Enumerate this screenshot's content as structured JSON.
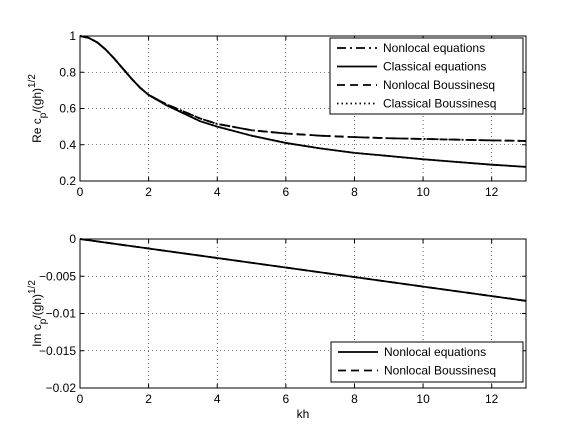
{
  "chart_data": [
    {
      "type": "line",
      "title": "",
      "xlabel": "",
      "ylabel": "Re c_p/(gh)^1/2",
      "ylabel_parts": {
        "main": "Re c",
        "sub": "p",
        "mid": "/(gh)",
        "sup": "1/2"
      },
      "xlim": [
        0,
        13
      ],
      "ylim": [
        0.2,
        1
      ],
      "xticks": [
        0,
        2,
        4,
        6,
        8,
        10,
        12
      ],
      "xtick_labels": [
        "0",
        "2",
        "4",
        "6",
        "8",
        "10",
        "12"
      ],
      "yticks": [
        0.2,
        0.4,
        0.6,
        0.8,
        1
      ],
      "ytick_labels": [
        "0.2",
        "0.4",
        "0.6",
        "0.8",
        "1"
      ],
      "grid": true,
      "legend_position": "top-right",
      "x": [
        0,
        0.25,
        0.5,
        0.75,
        1,
        1.25,
        1.5,
        1.75,
        2,
        2.5,
        3,
        3.5,
        4,
        5,
        6,
        7,
        8,
        9,
        10,
        11,
        12,
        13
      ],
      "series": [
        {
          "name": "Nonlocal equations",
          "style": "dashdot",
          "color": "#000000",
          "values": [
            1.0,
            0.99,
            0.965,
            0.925,
            0.875,
            0.82,
            0.765,
            0.715,
            0.675,
            0.625,
            0.585,
            0.545,
            0.515,
            0.48,
            0.462,
            0.45,
            0.442,
            0.436,
            0.432,
            0.428,
            0.424,
            0.421
          ]
        },
        {
          "name": "Classical equations",
          "style": "solid",
          "color": "#000000",
          "values": [
            1.0,
            0.99,
            0.965,
            0.925,
            0.875,
            0.82,
            0.765,
            0.715,
            0.675,
            0.62,
            0.575,
            0.53,
            0.5,
            0.45,
            0.41,
            0.38,
            0.355,
            0.338,
            0.32,
            0.305,
            0.29,
            0.278
          ]
        },
        {
          "name": "Nonlocal Boussinesq",
          "style": "dashed",
          "color": "#000000",
          "values": [
            1.0,
            0.99,
            0.965,
            0.925,
            0.875,
            0.82,
            0.765,
            0.715,
            0.675,
            0.625,
            0.585,
            0.545,
            0.515,
            0.48,
            0.462,
            0.45,
            0.442,
            0.436,
            0.432,
            0.428,
            0.424,
            0.421
          ]
        },
        {
          "name": "Classical Boussinesq",
          "style": "dotted",
          "color": "#000000",
          "values": [
            1.0,
            0.99,
            0.965,
            0.925,
            0.875,
            0.82,
            0.765,
            0.715,
            0.675,
            0.62,
            0.575,
            0.53,
            0.5,
            0.45,
            0.41,
            0.38,
            0.355,
            0.338,
            0.32,
            0.305,
            0.29,
            0.278
          ]
        }
      ]
    },
    {
      "type": "line",
      "title": "",
      "xlabel": "kh",
      "ylabel": "Im c_p/(gh)^1/2",
      "ylabel_parts": {
        "main": "Im c",
        "sub": "p",
        "mid": "/(gh)",
        "sup": "1/2"
      },
      "xlim": [
        0,
        13
      ],
      "ylim": [
        -0.02,
        0
      ],
      "xticks": [
        0,
        2,
        4,
        6,
        8,
        10,
        12
      ],
      "xtick_labels": [
        "0",
        "2",
        "4",
        "6",
        "8",
        "10",
        "12"
      ],
      "yticks": [
        -0.02,
        -0.015,
        -0.01,
        -0.005,
        0
      ],
      "ytick_labels": [
        "−0.02",
        "−0.015",
        "−0.01",
        "−0.005",
        "0"
      ],
      "grid": true,
      "legend_position": "bottom-right",
      "x": [
        0,
        13
      ],
      "series": [
        {
          "name": "Nonlocal equations",
          "style": "solid",
          "color": "#000000",
          "values": [
            0,
            -0.0083
          ]
        },
        {
          "name": "Nonlocal Boussinesq",
          "style": "dashed",
          "color": "#000000",
          "values": [
            0,
            -0.0083
          ]
        }
      ]
    }
  ]
}
